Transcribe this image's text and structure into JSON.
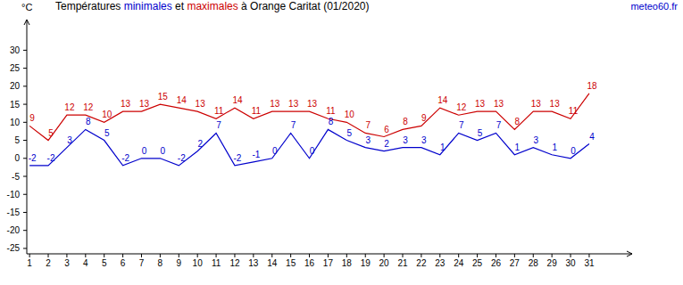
{
  "chart_data": {
    "type": "line",
    "title": "Températures minimales et maximales à Orange Caritat (01/2020)",
    "y_label": "°C",
    "source": "meteo60.fr",
    "x": [
      1,
      2,
      3,
      4,
      5,
      6,
      7,
      8,
      9,
      10,
      11,
      12,
      13,
      14,
      15,
      16,
      17,
      18,
      19,
      20,
      21,
      22,
      23,
      24,
      25,
      26,
      27,
      28,
      29,
      30,
      31
    ],
    "series": [
      {
        "name": "minimales",
        "color": "#0000cc",
        "values": [
          -2,
          -2,
          3,
          8,
          5,
          -2,
          0,
          0,
          -2,
          2,
          7,
          -2,
          -1,
          0,
          7,
          0,
          8,
          5,
          3,
          2,
          3,
          3,
          1,
          7,
          5,
          7,
          1,
          3,
          1,
          0,
          4
        ]
      },
      {
        "name": "maximales",
        "color": "#cc0000",
        "values": [
          9,
          5,
          12,
          12,
          10,
          13,
          13,
          15,
          14,
          13,
          11,
          14,
          11,
          13,
          13,
          13,
          11,
          10,
          7,
          6,
          8,
          9,
          14,
          12,
          13,
          13,
          8,
          13,
          13,
          11,
          18
        ]
      }
    ],
    "xlim": [
      0.85,
      33.3
    ],
    "xticks": [
      1,
      2,
      3,
      4,
      5,
      6,
      7,
      8,
      9,
      10,
      11,
      12,
      13,
      14,
      15,
      16,
      17,
      18,
      19,
      20,
      21,
      22,
      23,
      24,
      25,
      26,
      27,
      28,
      29,
      30,
      31
    ],
    "ylim": [
      -26.5,
      38.5
    ],
    "yticks": [
      -25,
      -20,
      -15,
      -10,
      -5,
      0,
      5,
      10,
      15,
      20,
      25,
      30
    ],
    "grid": false,
    "data_labels": true
  }
}
